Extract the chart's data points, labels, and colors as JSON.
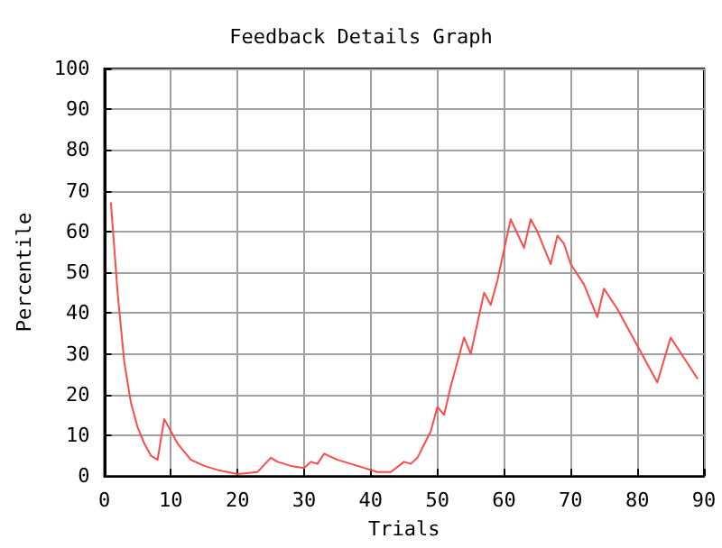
{
  "chart_data": {
    "type": "line",
    "title": "Feedback Details Graph",
    "xlabel": "Trials",
    "ylabel": "Percentile",
    "series": [
      {
        "color": "#ff4a4a",
        "x": [
          1,
          2,
          3,
          4,
          5,
          6,
          7,
          8,
          9,
          10,
          11,
          12,
          13,
          15,
          17,
          20,
          23,
          25,
          26,
          28,
          30,
          31,
          32,
          33,
          35,
          38,
          41,
          43,
          45,
          46,
          47,
          49,
          50,
          51,
          52,
          54,
          55,
          57,
          58,
          59,
          61,
          63,
          64,
          65,
          67,
          68,
          69,
          70,
          72,
          74,
          75,
          77,
          80,
          83,
          85,
          87,
          89
        ],
        "values": [
          67,
          45,
          28,
          18,
          12,
          8,
          5,
          4,
          14,
          11,
          8,
          6,
          4,
          2.5,
          1.5,
          0.5,
          1,
          4.5,
          3.5,
          2.5,
          2,
          3.5,
          3,
          5.5,
          4,
          2.5,
          1,
          1,
          3.5,
          3,
          4.5,
          11,
          17,
          15,
          22,
          34,
          30,
          45,
          42,
          48,
          63,
          56,
          63,
          60,
          52,
          59,
          57,
          52,
          47,
          39,
          46,
          41,
          32,
          23,
          34,
          29,
          24
        ]
      }
    ],
    "xlim": [
      0,
      90
    ],
    "xticks": [
      0,
      10,
      20,
      30,
      40,
      50,
      60,
      70,
      80,
      90
    ],
    "ylim": [
      0,
      100
    ],
    "yticks": [
      0,
      10,
      20,
      30,
      40,
      50,
      60,
      70,
      80,
      90,
      100
    ],
    "grid": true,
    "marker": "none",
    "line_style": "solid"
  }
}
